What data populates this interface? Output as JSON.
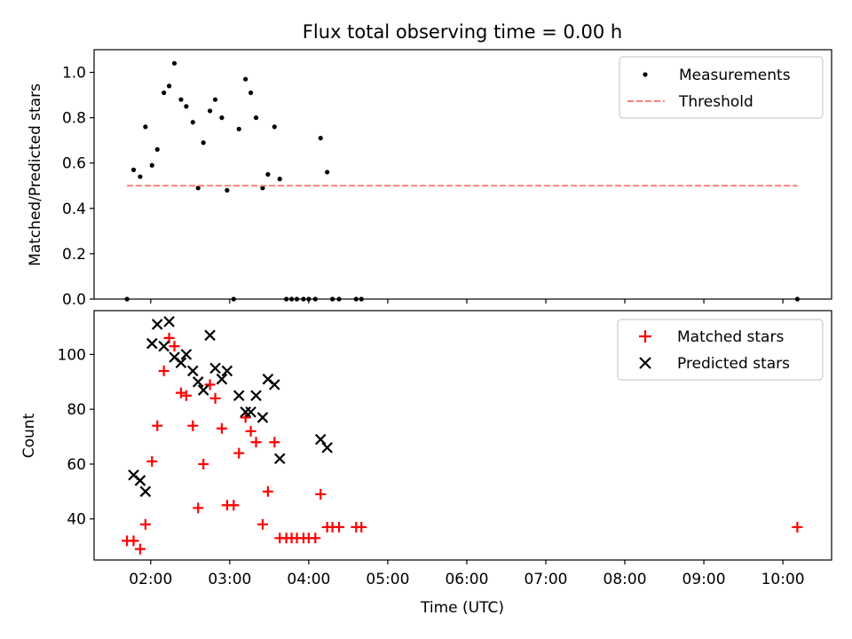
{
  "chart_data": [
    {
      "type": "scatter",
      "title": "Flux total observing time = 0.00 h",
      "xlabel": "",
      "ylabel": "Matched/Predicted stars",
      "xlim": [
        "01:17",
        "10:37"
      ],
      "ylim": [
        0,
        1.1
      ],
      "yticks": [
        0.0,
        0.2,
        0.4,
        0.6,
        0.8,
        1.0
      ],
      "ytick_labels": [
        "0.0",
        "0.2",
        "0.4",
        "0.6",
        "0.8",
        "1.0"
      ],
      "legend": [
        "Measurements",
        "Threshold"
      ],
      "legend_position": "top-right",
      "grid": false,
      "series": [
        {
          "name": "Measurements",
          "style": "dots",
          "color": "#000000",
          "points": [
            [
              "01:42",
              0.0
            ],
            [
              "01:47",
              0.57
            ],
            [
              "01:52",
              0.54
            ],
            [
              "01:56",
              0.76
            ],
            [
              "02:01",
              0.59
            ],
            [
              "02:05",
              0.66
            ],
            [
              "02:10",
              0.91
            ],
            [
              "02:14",
              0.94
            ],
            [
              "02:18",
              1.04
            ],
            [
              "02:23",
              0.88
            ],
            [
              "02:27",
              0.85
            ],
            [
              "02:32",
              0.78
            ],
            [
              "02:36",
              0.49
            ],
            [
              "02:40",
              0.69
            ],
            [
              "02:45",
              0.83
            ],
            [
              "02:49",
              0.88
            ],
            [
              "02:54",
              0.8
            ],
            [
              "02:58",
              0.48
            ],
            [
              "03:03",
              0.0
            ],
            [
              "03:07",
              0.75
            ],
            [
              "03:12",
              0.97
            ],
            [
              "03:16",
              0.91
            ],
            [
              "03:20",
              0.8
            ],
            [
              "03:25",
              0.49
            ],
            [
              "03:29",
              0.55
            ],
            [
              "03:34",
              0.76
            ],
            [
              "03:38",
              0.53
            ],
            [
              "03:43",
              0.0
            ],
            [
              "03:47",
              0.0
            ],
            [
              "03:51",
              0.0
            ],
            [
              "03:56",
              0.0
            ],
            [
              "04:00",
              0.0
            ],
            [
              "04:05",
              0.0
            ],
            [
              "04:09",
              0.71
            ],
            [
              "04:14",
              0.56
            ],
            [
              "04:18",
              0.0
            ],
            [
              "04:23",
              0.0
            ],
            [
              "04:36",
              0.0
            ],
            [
              "04:40",
              0.0
            ],
            [
              "10:11",
              0.0
            ]
          ]
        },
        {
          "name": "Threshold",
          "style": "dashed",
          "color": "#ff7f7f",
          "points": [
            [
              "01:42",
              0.5
            ],
            [
              "10:11",
              0.5
            ]
          ]
        }
      ]
    },
    {
      "type": "scatter",
      "title": "",
      "xlabel": "Time (UTC)",
      "ylabel": "Count",
      "xlim": [
        "01:17",
        "10:37"
      ],
      "ylim": [
        25,
        116
      ],
      "yticks": [
        40,
        60,
        80,
        100
      ],
      "ytick_labels": [
        "40",
        "60",
        "80",
        "100"
      ],
      "xticks": [
        "02:00",
        "03:00",
        "04:00",
        "05:00",
        "06:00",
        "07:00",
        "08:00",
        "09:00",
        "10:00"
      ],
      "xtick_labels": [
        "02:00",
        "03:00",
        "04:00",
        "05:00",
        "06:00",
        "07:00",
        "08:00",
        "09:00",
        "10:00"
      ],
      "legend": [
        "Matched stars",
        "Predicted stars"
      ],
      "legend_position": "top-right",
      "grid": false,
      "series": [
        {
          "name": "Matched stars",
          "marker": "plus",
          "color": "#ff0000",
          "points": [
            [
              "01:42",
              32
            ],
            [
              "01:47",
              32
            ],
            [
              "01:52",
              29
            ],
            [
              "01:56",
              38
            ],
            [
              "02:01",
              61
            ],
            [
              "02:05",
              74
            ],
            [
              "02:10",
              94
            ],
            [
              "02:14",
              106
            ],
            [
              "02:18",
              103
            ],
            [
              "02:23",
              86
            ],
            [
              "02:27",
              85
            ],
            [
              "02:32",
              74
            ],
            [
              "02:36",
              44
            ],
            [
              "02:40",
              60
            ],
            [
              "02:45",
              89
            ],
            [
              "02:49",
              84
            ],
            [
              "02:54",
              73
            ],
            [
              "02:58",
              45
            ],
            [
              "03:03",
              45
            ],
            [
              "03:07",
              64
            ],
            [
              "03:12",
              77
            ],
            [
              "03:16",
              72
            ],
            [
              "03:20",
              68
            ],
            [
              "03:25",
              38
            ],
            [
              "03:29",
              50
            ],
            [
              "03:34",
              68
            ],
            [
              "03:38",
              33
            ],
            [
              "03:43",
              33
            ],
            [
              "03:47",
              33
            ],
            [
              "03:51",
              33
            ],
            [
              "03:56",
              33
            ],
            [
              "04:00",
              33
            ],
            [
              "04:05",
              33
            ],
            [
              "04:09",
              49
            ],
            [
              "04:14",
              37
            ],
            [
              "04:18",
              37
            ],
            [
              "04:23",
              37
            ],
            [
              "04:36",
              37
            ],
            [
              "04:40",
              37
            ],
            [
              "10:11",
              37
            ]
          ]
        },
        {
          "name": "Predicted stars",
          "marker": "x",
          "color": "#000000",
          "points": [
            [
              "01:47",
              56
            ],
            [
              "01:52",
              54
            ],
            [
              "01:56",
              50
            ],
            [
              "02:01",
              104
            ],
            [
              "02:05",
              111
            ],
            [
              "02:10",
              103
            ],
            [
              "02:14",
              112
            ],
            [
              "02:18",
              99
            ],
            [
              "02:23",
              97
            ],
            [
              "02:27",
              100
            ],
            [
              "02:32",
              94
            ],
            [
              "02:36",
              90
            ],
            [
              "02:40",
              87
            ],
            [
              "02:45",
              107
            ],
            [
              "02:49",
              95
            ],
            [
              "02:54",
              91
            ],
            [
              "02:58",
              94
            ],
            [
              "03:07",
              85
            ],
            [
              "03:12",
              79
            ],
            [
              "03:16",
              79
            ],
            [
              "03:20",
              85
            ],
            [
              "03:25",
              77
            ],
            [
              "03:29",
              91
            ],
            [
              "03:34",
              89
            ],
            [
              "03:38",
              62
            ],
            [
              "04:09",
              69
            ],
            [
              "04:14",
              66
            ]
          ]
        }
      ]
    }
  ]
}
